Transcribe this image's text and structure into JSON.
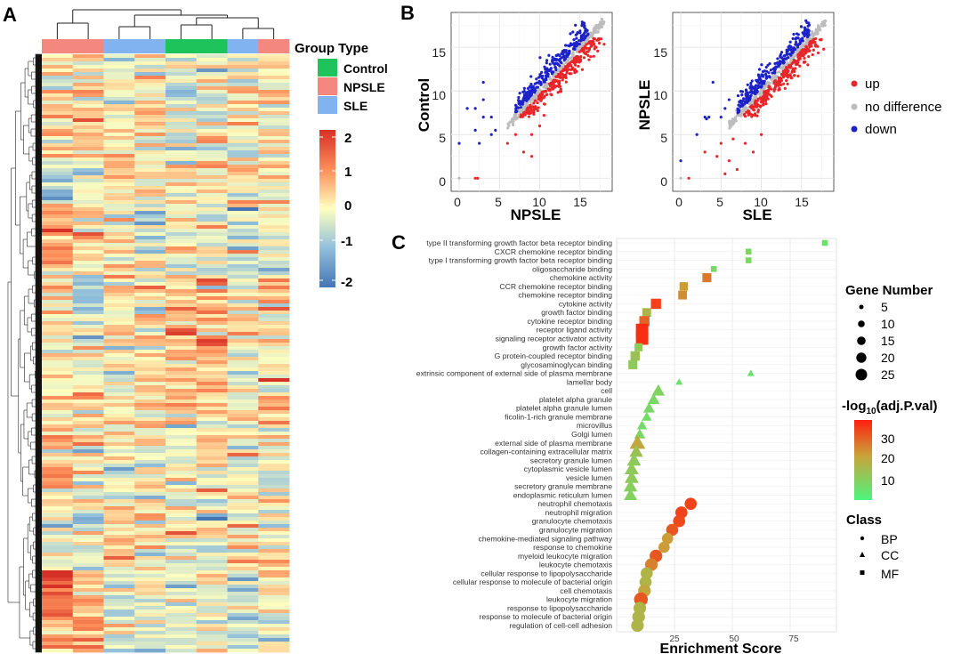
{
  "panels": {
    "A": {
      "letter": "A"
    },
    "B": {
      "letter": "B"
    },
    "C": {
      "letter": "C"
    }
  },
  "heatmap": {
    "group_legend_title": "Group Type",
    "groups": [
      {
        "name": "Control",
        "color": "#1ec35c"
      },
      {
        "name": "NPSLE",
        "color": "#f4877e"
      },
      {
        "name": "SLE",
        "color": "#82b3f1"
      }
    ],
    "column_groups": [
      "NPSLE",
      "NPSLE",
      "SLE",
      "SLE",
      "Control",
      "Control",
      "SLE",
      "NPSLE"
    ],
    "scale_ticks": [
      "2",
      "1",
      "0",
      "-1",
      "-2"
    ],
    "scale_colors": {
      "high": "#d73027",
      "mid": "#ffffbf",
      "low": "#4575b4"
    }
  },
  "chart_data": [
    {
      "type": "scatter",
      "id": "B-left",
      "xlabel": "NPSLE",
      "ylabel": "Control",
      "xlim": [
        -1,
        19
      ],
      "ylim": [
        -1.5,
        19
      ],
      "xticks": [
        "0",
        "5",
        "10",
        "15"
      ],
      "yticks": [
        "0",
        "5",
        "10",
        "15"
      ],
      "grid": true,
      "series": [
        {
          "name": "up",
          "color": "#e8262a",
          "description": "points below diagonal"
        },
        {
          "name": "no difference",
          "color": "#bdbdbd",
          "description": "points on diagonal"
        },
        {
          "name": "down",
          "color": "#1d22c8",
          "description": "points above diagonal"
        }
      ]
    },
    {
      "type": "scatter",
      "id": "B-right",
      "xlabel": "SLE",
      "ylabel": "NPSLE",
      "xlim": [
        -1,
        19
      ],
      "ylim": [
        -1.5,
        19
      ],
      "xticks": [
        "0",
        "5",
        "10",
        "15"
      ],
      "yticks": [
        "0",
        "5",
        "10",
        "15"
      ],
      "grid": true,
      "series": [
        {
          "name": "up",
          "color": "#e8262a"
        },
        {
          "name": "no difference",
          "color": "#bdbdbd"
        },
        {
          "name": "down",
          "color": "#1d22c8"
        }
      ]
    },
    {
      "type": "scatter",
      "id": "C",
      "xlabel": "Enrichment Score",
      "xlim": [
        0,
        95
      ],
      "xticks": [
        "25",
        "50",
        "75"
      ],
      "xtick_values": [
        25,
        50,
        75
      ],
      "color_scale": {
        "low": "#4cf57e",
        "mid": "#c9a33a",
        "high": "#ff1f0e",
        "min": 0,
        "max": 38
      },
      "terms": [
        {
          "label": "type II transforming growth factor beta receptor binding",
          "x": 90,
          "genes": 3,
          "logp": 5,
          "class": "MF"
        },
        {
          "label": "CXCR chemokine receptor binding",
          "x": 57,
          "genes": 3,
          "logp": 7,
          "class": "MF"
        },
        {
          "label": "type I transforming growth factor beta receptor binding",
          "x": 57,
          "genes": 3,
          "logp": 7,
          "class": "MF"
        },
        {
          "label": "oligosaccharide binding",
          "x": 42,
          "genes": 3,
          "logp": 7,
          "class": "MF"
        },
        {
          "label": "chemokine activity",
          "x": 39,
          "genes": 11,
          "logp": 25,
          "class": "MF"
        },
        {
          "label": "CCR chemokine receptor binding",
          "x": 29,
          "genes": 9,
          "logp": 20,
          "class": "MF"
        },
        {
          "label": "chemokine receptor binding",
          "x": 28.5,
          "genes": 10,
          "logp": 22,
          "class": "MF"
        },
        {
          "label": "cytokine activity",
          "x": 17,
          "genes": 15,
          "logp": 33,
          "class": "MF"
        },
        {
          "label": "growth factor binding",
          "x": 13,
          "genes": 10,
          "logp": 15,
          "class": "MF"
        },
        {
          "label": "cytokine receptor binding",
          "x": 12,
          "genes": 15,
          "logp": 28,
          "class": "MF"
        },
        {
          "label": "receptor ligand activity",
          "x": 11,
          "genes": 25,
          "logp": 36,
          "class": "MF"
        },
        {
          "label": "signaling receptor activator activity",
          "x": 11,
          "genes": 25,
          "logp": 36,
          "class": "MF"
        },
        {
          "label": "growth factor activity",
          "x": 9.5,
          "genes": 8,
          "logp": 10,
          "class": "MF"
        },
        {
          "label": "G protein-coupled receptor binding",
          "x": 8,
          "genes": 12,
          "logp": 12,
          "class": "MF"
        },
        {
          "label": "glycosaminoglycan binding",
          "x": 7,
          "genes": 11,
          "logp": 10,
          "class": "MF"
        },
        {
          "label": "extrinsic component of external side of plasma membrane",
          "x": 58,
          "genes": 2,
          "logp": 5,
          "class": "CC"
        },
        {
          "label": "lamellar body",
          "x": 27,
          "genes": 2,
          "logp": 5,
          "class": "CC"
        },
        {
          "label": "cell",
          "x": 18,
          "genes": 12,
          "logp": 8,
          "class": "CC"
        },
        {
          "label": "platelet alpha granule",
          "x": 16,
          "genes": 10,
          "logp": 7,
          "class": "CC"
        },
        {
          "label": "platelet alpha granule lumen",
          "x": 14,
          "genes": 9,
          "logp": 7,
          "class": "CC"
        },
        {
          "label": "ficolin-1-rich granule membrane",
          "x": 13,
          "genes": 6,
          "logp": 6,
          "class": "CC"
        },
        {
          "label": "microvillus",
          "x": 11,
          "genes": 6,
          "logp": 6,
          "class": "CC"
        },
        {
          "label": "Golgi lumen",
          "x": 10,
          "genes": 8,
          "logp": 7,
          "class": "CC"
        },
        {
          "label": "external side of plasma membrane",
          "x": 9,
          "genes": 20,
          "logp": 18,
          "class": "CC"
        },
        {
          "label": "collagen-containing extracellular matrix",
          "x": 8.5,
          "genes": 14,
          "logp": 12,
          "class": "CC"
        },
        {
          "label": "secretory granule lumen",
          "x": 7.5,
          "genes": 15,
          "logp": 10,
          "class": "CC"
        },
        {
          "label": "cytoplasmic vesicle lumen",
          "x": 6.5,
          "genes": 15,
          "logp": 10,
          "class": "CC"
        },
        {
          "label": "vesicle lumen",
          "x": 6.5,
          "genes": 15,
          "logp": 10,
          "class": "CC"
        },
        {
          "label": "secretory granule membrane",
          "x": 6,
          "genes": 14,
          "logp": 9,
          "class": "CC"
        },
        {
          "label": "endoplasmic reticulum lumen",
          "x": 6,
          "genes": 13,
          "logp": 8,
          "class": "CC"
        },
        {
          "label": "neutrophil chemotaxis",
          "x": 32,
          "genes": 18,
          "logp": 33,
          "class": "BP"
        },
        {
          "label": "neutrophil migration",
          "x": 28,
          "genes": 18,
          "logp": 33,
          "class": "BP"
        },
        {
          "label": "granulocyte chemotaxis",
          "x": 27,
          "genes": 18,
          "logp": 32,
          "class": "BP"
        },
        {
          "label": "granulocyte migration",
          "x": 24,
          "genes": 18,
          "logp": 30,
          "class": "BP"
        },
        {
          "label": "chemokine-mediated signaling pathway",
          "x": 22,
          "genes": 15,
          "logp": 20,
          "class": "BP"
        },
        {
          "label": "response to chemokine",
          "x": 20.5,
          "genes": 15,
          "logp": 20,
          "class": "BP"
        },
        {
          "label": "myeloid leukocyte migration",
          "x": 17,
          "genes": 20,
          "logp": 30,
          "class": "BP"
        },
        {
          "label": "leukocyte chemotaxis",
          "x": 15,
          "genes": 20,
          "logp": 24,
          "class": "BP"
        },
        {
          "label": "cellular response to lipopolysaccharide",
          "x": 13,
          "genes": 18,
          "logp": 15,
          "class": "BP"
        },
        {
          "label": "cellular response to molecule of bacterial origin",
          "x": 12.5,
          "genes": 18,
          "logp": 15,
          "class": "BP"
        },
        {
          "label": "cell chemotaxis",
          "x": 12,
          "genes": 20,
          "logp": 18,
          "class": "BP"
        },
        {
          "label": "leukocyte migration",
          "x": 10.5,
          "genes": 25,
          "logp": 30,
          "class": "BP"
        },
        {
          "label": "response to lipopolysaccharide",
          "x": 10,
          "genes": 20,
          "logp": 15,
          "class": "BP"
        },
        {
          "label": "response to molecule of bacterial origin",
          "x": 9.5,
          "genes": 20,
          "logp": 15,
          "class": "BP"
        },
        {
          "label": "regulation of cell-cell adhesion",
          "x": 9,
          "genes": 20,
          "logp": 15,
          "class": "BP"
        }
      ]
    }
  ],
  "legend_B": {
    "items": [
      {
        "label": "up",
        "color": "#e8262a"
      },
      {
        "label": "no difference",
        "color": "#bdbdbd"
      },
      {
        "label": "down",
        "color": "#1d22c8"
      }
    ]
  },
  "legend_C": {
    "gene_title": "Gene Number",
    "gene_values": [
      "5",
      "10",
      "15",
      "20",
      "25"
    ],
    "color_title_main": "-log",
    "color_title_sub": "10",
    "color_title_end": "(adj.P.val)",
    "color_ticks": [
      "30",
      "20",
      "10"
    ],
    "class_title": "Class",
    "classes": [
      "BP",
      "CC",
      "MF"
    ]
  }
}
